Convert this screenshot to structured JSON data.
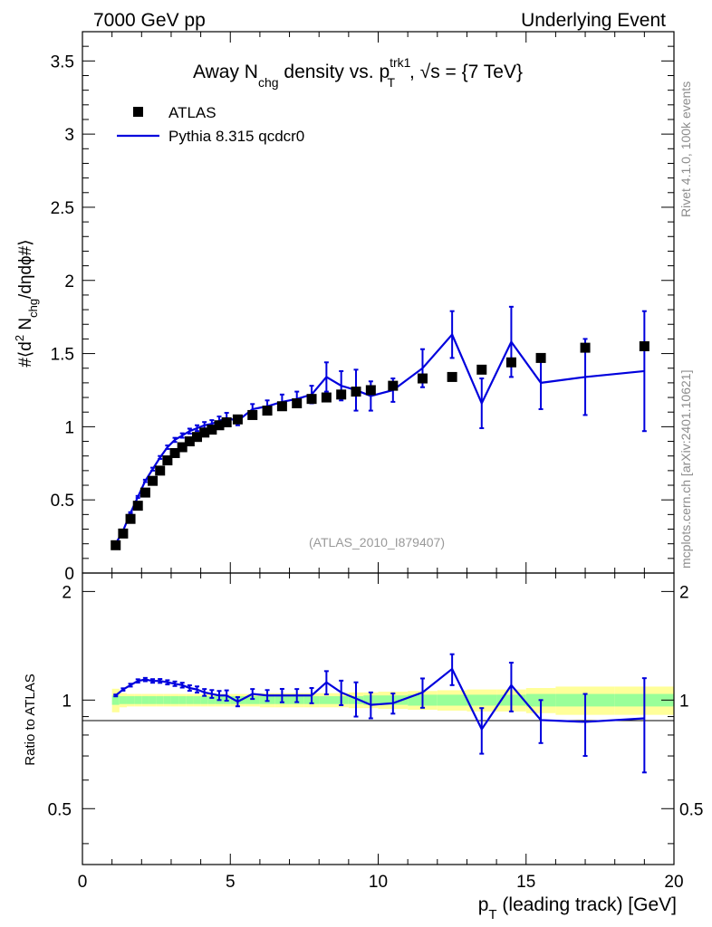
{
  "header": {
    "left": "7000 GeV pp",
    "right": "Underlying Event"
  },
  "title": {
    "prefix": "Away N",
    "sub1": "chg",
    "middle": " density vs. p",
    "sup": "trk1",
    "sub2": "T",
    "suffix": ", √s = {7 TeV}"
  },
  "side_labels": {
    "rivet": "Rivet 4.1.0,  100k events",
    "mcplots": "mcplots.cern.ch [arXiv:2401.10621]"
  },
  "watermark": "(ATLAS_2010_I879407)",
  "ratio_ylabel": "Ratio to ATLAS",
  "colors": {
    "mc": "#0000dd",
    "data": "#000000",
    "band_inner": "#99ff99",
    "band_outer": "#ffff99"
  },
  "chart_data": {
    "type": "line",
    "main": {
      "ylabel": "#⟨d² Nₕₕₘ/dηdϕ#⟩",
      "ylabel_parts": {
        "a": "#⟨d",
        "b": "2",
        "c": " N",
        "d": "chg",
        "e": "/dηdϕ#⟩"
      },
      "ylim": [
        0,
        3.7
      ],
      "yticks": [
        0,
        0.5,
        1,
        1.5,
        2,
        2.5,
        3,
        3.5
      ],
      "ytick_labels": [
        "0",
        "0.5",
        "1",
        "1.5",
        "2",
        "2.5",
        "3",
        "3.5"
      ]
    },
    "ratio": {
      "ylim": [
        0.35,
        2.25
      ],
      "yticks": [
        0.5,
        1,
        2
      ],
      "ytick_labels": [
        "0.5",
        "1",
        "2"
      ]
    },
    "x": {
      "xlabel_main": "p",
      "xlabel_sub": "T",
      "xlabel_rest": " (leading track) [GeV]",
      "xlim": [
        0,
        20
      ],
      "xticks": [
        0,
        5,
        10,
        15,
        20
      ],
      "xtick_labels": [
        "0",
        "5",
        "10",
        "15",
        "20"
      ]
    },
    "legend": {
      "position": "top-left",
      "entries": [
        "ATLAS",
        "Pythia 8.315 qcdcr0"
      ]
    },
    "series": [
      {
        "name": "ATLAS",
        "style": "markers",
        "x": [
          1.125,
          1.375,
          1.625,
          1.875,
          2.125,
          2.375,
          2.625,
          2.875,
          3.125,
          3.375,
          3.625,
          3.875,
          4.125,
          4.375,
          4.625,
          4.875,
          5.25,
          5.75,
          6.25,
          6.75,
          7.25,
          7.75,
          8.25,
          8.75,
          9.25,
          9.75,
          10.5,
          11.5,
          12.5,
          13.5,
          14.5,
          15.5,
          17.0,
          19.0
        ],
        "y": [
          0.19,
          0.27,
          0.37,
          0.46,
          0.55,
          0.63,
          0.7,
          0.77,
          0.82,
          0.86,
          0.9,
          0.93,
          0.96,
          0.98,
          1.01,
          1.03,
          1.05,
          1.08,
          1.11,
          1.14,
          1.16,
          1.19,
          1.2,
          1.22,
          1.24,
          1.25,
          1.28,
          1.33,
          1.34,
          1.39,
          1.44,
          1.47,
          1.54,
          1.55
        ]
      },
      {
        "name": "Pythia 8.315 qcdcr0",
        "style": "line",
        "x": [
          1.125,
          1.375,
          1.625,
          1.875,
          2.125,
          2.375,
          2.625,
          2.875,
          3.125,
          3.375,
          3.625,
          3.875,
          4.125,
          4.375,
          4.625,
          4.875,
          5.25,
          5.75,
          6.25,
          6.75,
          7.25,
          7.75,
          8.25,
          8.75,
          9.25,
          9.75,
          10.5,
          11.5,
          12.5,
          13.5,
          14.5,
          15.5,
          17.0,
          19.0
        ],
        "y": [
          0.2,
          0.29,
          0.41,
          0.52,
          0.63,
          0.71,
          0.79,
          0.86,
          0.91,
          0.94,
          0.97,
          0.99,
          1.01,
          1.02,
          1.04,
          1.06,
          1.04,
          1.12,
          1.14,
          1.17,
          1.19,
          1.22,
          1.34,
          1.28,
          1.25,
          1.21,
          1.25,
          1.4,
          1.63,
          1.16,
          1.58,
          1.3,
          1.34,
          1.38
        ],
        "yerr": [
          0.004,
          0.005,
          0.006,
          0.007,
          0.008,
          0.01,
          0.01,
          0.012,
          0.014,
          0.015,
          0.017,
          0.02,
          0.022,
          0.025,
          0.03,
          0.035,
          0.03,
          0.035,
          0.04,
          0.05,
          0.05,
          0.06,
          0.1,
          0.1,
          0.14,
          0.1,
          0.08,
          0.13,
          0.16,
          0.17,
          0.24,
          0.18,
          0.26,
          0.41
        ],
        "ratio": [
          1.03,
          1.07,
          1.1,
          1.13,
          1.14,
          1.13,
          1.13,
          1.12,
          1.11,
          1.1,
          1.08,
          1.07,
          1.05,
          1.04,
          1.03,
          1.03,
          0.99,
          1.04,
          1.03,
          1.03,
          1.03,
          1.03,
          1.12,
          1.05,
          1.01,
          0.97,
          0.98,
          1.05,
          1.22,
          0.83,
          1.1,
          0.88,
          0.87,
          0.89
        ],
        "ratio_err": [
          0.006,
          0.008,
          0.01,
          0.012,
          0.012,
          0.013,
          0.014,
          0.015,
          0.016,
          0.017,
          0.019,
          0.021,
          0.023,
          0.026,
          0.03,
          0.034,
          0.029,
          0.033,
          0.036,
          0.044,
          0.043,
          0.05,
          0.083,
          0.082,
          0.11,
          0.08,
          0.063,
          0.098,
          0.12,
          0.12,
          0.17,
          0.12,
          0.17,
          0.26
        ]
      }
    ],
    "uncertainty_bands": {
      "edges": [
        1.0,
        1.25,
        1.5,
        1.75,
        2.0,
        2.25,
        2.5,
        2.75,
        3.0,
        3.25,
        3.5,
        3.75,
        4.0,
        4.25,
        4.5,
        4.75,
        5.0,
        5.5,
        6.0,
        6.5,
        7.0,
        7.5,
        8.0,
        8.5,
        9.0,
        9.5,
        10.0,
        11.0,
        12.0,
        13.0,
        14.0,
        15.0,
        16.0,
        18.0,
        20.0
      ],
      "inner": [
        0.03,
        0.025,
        0.025,
        0.025,
        0.025,
        0.025,
        0.025,
        0.025,
        0.025,
        0.025,
        0.025,
        0.025,
        0.025,
        0.025,
        0.025,
        0.025,
        0.025,
        0.025,
        0.025,
        0.025,
        0.025,
        0.025,
        0.025,
        0.025,
        0.025,
        0.03,
        0.03,
        0.035,
        0.035,
        0.035,
        0.035,
        0.04,
        0.04,
        0.04
      ],
      "outer": [
        0.075,
        0.045,
        0.04,
        0.04,
        0.04,
        0.04,
        0.04,
        0.04,
        0.04,
        0.04,
        0.04,
        0.04,
        0.04,
        0.04,
        0.04,
        0.04,
        0.04,
        0.04,
        0.045,
        0.045,
        0.045,
        0.045,
        0.045,
        0.045,
        0.05,
        0.05,
        0.055,
        0.06,
        0.065,
        0.07,
        0.07,
        0.08,
        0.09,
        0.09
      ]
    }
  }
}
